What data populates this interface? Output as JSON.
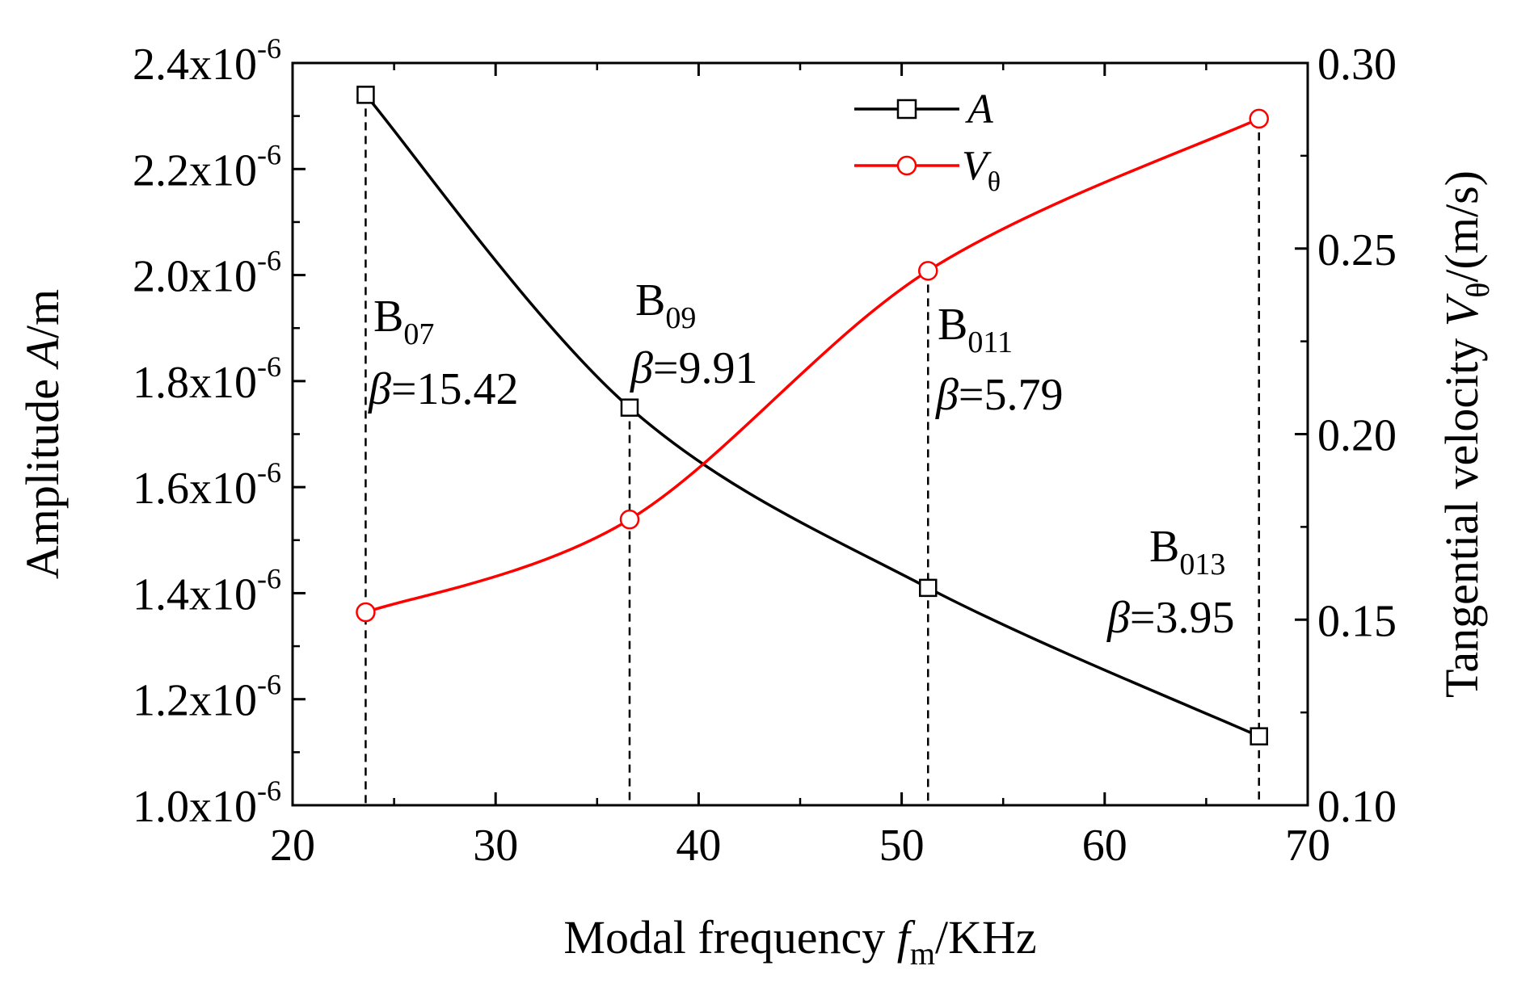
{
  "chart_data": {
    "type": "line",
    "xlabel": {
      "pre": "Modal frequency ",
      "var": "f",
      "sub": "m",
      "post": "/KHz"
    },
    "ylabel_left": {
      "pre": "Amplitude ",
      "var": "A",
      "post": "/m"
    },
    "ylabel_right": {
      "pre": "Tangential velocity ",
      "var": "V",
      "sub": "θ",
      "post": "/(m/s)"
    },
    "xlim": [
      20,
      70
    ],
    "ylim_left": [
      1.0,
      2.4
    ],
    "ylim_right": [
      0.1,
      0.3
    ],
    "x_ticks": [
      "20",
      "30",
      "40",
      "50",
      "60",
      "70"
    ],
    "y_left_ticks": [
      {
        "mant": "1.0x10",
        "exp": "-6"
      },
      {
        "mant": "1.2x10",
        "exp": "-6"
      },
      {
        "mant": "1.4x10",
        "exp": "-6"
      },
      {
        "mant": "1.6x10",
        "exp": "-6"
      },
      {
        "mant": "1.8x10",
        "exp": "-6"
      },
      {
        "mant": "2.0x10",
        "exp": "-6"
      },
      {
        "mant": "2.2x10",
        "exp": "-6"
      },
      {
        "mant": "2.4x10",
        "exp": "-6"
      }
    ],
    "y_right_ticks": [
      "0.10",
      "0.15",
      "0.20",
      "0.25",
      "0.30"
    ],
    "x": [
      23.6,
      36.6,
      51.3,
      67.6
    ],
    "series": [
      {
        "name": "A",
        "axis": "left",
        "color": "#000000",
        "marker": "square",
        "unit_scale": "1e-6",
        "values": [
          2.34,
          1.75,
          1.41,
          1.13
        ]
      },
      {
        "name": "V",
        "sub": "θ",
        "axis": "right",
        "color": "#ff0000",
        "marker": "circle",
        "values": [
          0.152,
          0.177,
          0.244,
          0.285
        ]
      }
    ],
    "legend": [
      {
        "var": "A",
        "sub": ""
      },
      {
        "var": "V",
        "sub": "θ"
      }
    ],
    "legend_position": "top-right",
    "modes": [
      {
        "mode": "B",
        "sub": "07",
        "beta_symbol": "β",
        "beta": "=15.42"
      },
      {
        "mode": "B",
        "sub": "09",
        "beta_symbol": "β",
        "beta": "=9.91"
      },
      {
        "mode": "B",
        "sub": "011",
        "beta_symbol": "β",
        "beta": "=5.79"
      },
      {
        "mode": "B",
        "sub": "013",
        "beta_symbol": "β",
        "beta": "=3.95"
      }
    ],
    "grid": false
  }
}
